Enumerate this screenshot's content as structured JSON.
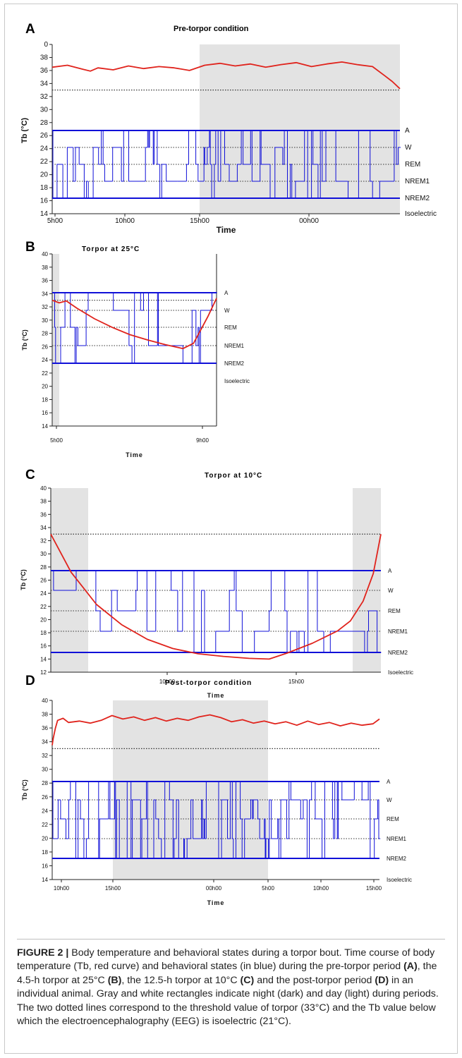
{
  "figure": {
    "caption_label": "FIGURE 2 |",
    "caption_text": " Body temperature and behavioral states during a torpor bout. Time course of body temperature (Tb, red curve) and behavioral states (in blue) during the pre-torpor period ",
    "caption_A": "(A)",
    "caption_t2": ", the 4.5-h torpor at 25°C ",
    "caption_B": "(B)",
    "caption_t3": ", the 12.5-h torpor at 10°C ",
    "caption_C": "(C)",
    "caption_t4": " and the post-torpor period ",
    "caption_D": "(D)",
    "caption_t5": " in an individual animal. Gray and white rectangles indicate night (dark) and day (light) during periods. The two dotted lines correspond to the threshold value of torpor (33°C) and the Tb value below which the electroencephalography (EEG) is isoelectric (21°C)."
  },
  "colors": {
    "tb_curve": "#e0231c",
    "states": "#1010d8",
    "night": "#e3e3e3",
    "dotted": "#333333"
  },
  "chart_data": [
    {
      "panel": "A",
      "type": "line",
      "title": "Pre-torpor condition",
      "ylabel": "Tb (°C)",
      "xlabel": "Time",
      "ylim": [
        14,
        40
      ],
      "y_ticks": [
        "0",
        "38",
        "36",
        "34",
        "32",
        "30",
        "28",
        "26",
        "24",
        "22",
        "20",
        "18",
        "16",
        "14"
      ],
      "x_ticks": [
        "5h00",
        "10h00",
        "15h00",
        "00h00"
      ],
      "state_labels": [
        "A",
        "W",
        "REM",
        "NREM1",
        "NREM2",
        "Isoelectric"
      ],
      "night_shading": [
        {
          "from": "15h00",
          "to": "end"
        }
      ],
      "dotted_lines": [
        33,
        21
      ],
      "series": [
        {
          "name": "Tb",
          "x_hours": [
            5,
            6,
            7,
            7.5,
            8,
            9,
            10,
            11,
            12,
            13,
            14,
            15,
            16,
            17,
            18,
            19,
            20,
            21,
            22,
            23,
            24,
            25,
            26,
            26.8,
            27.3,
            27.8
          ],
          "values": [
            36.5,
            36.8,
            36.2,
            35.9,
            36.4,
            36.1,
            36.7,
            36.3,
            36.6,
            36.4,
            36.0,
            36.8,
            37.1,
            36.7,
            37.0,
            36.5,
            36.9,
            37.2,
            36.6,
            37.0,
            37.3,
            36.9,
            36.6,
            35.2,
            34.3,
            33.2
          ]
        }
      ]
    },
    {
      "panel": "B",
      "type": "line",
      "title": "Torpor at 25°C",
      "ylabel": "Tb (°C)",
      "xlabel": "Time",
      "ylim": [
        14,
        40
      ],
      "y_ticks": [
        "40",
        "38",
        "36",
        "34",
        "32",
        "30",
        "28",
        "26",
        "24",
        "22",
        "20",
        "18",
        "16",
        "14"
      ],
      "x_ticks": [
        "5h00",
        "9h00"
      ],
      "state_labels": [
        "A",
        "W",
        "REM",
        "NREM1",
        "NREM2",
        "Isoelectric"
      ],
      "night_shading": [
        {
          "from": "start",
          "to": "5h10"
        }
      ],
      "dotted_lines": [
        33,
        21
      ],
      "series": [
        {
          "name": "Tb",
          "x_hours": [
            4.8,
            5.0,
            5.2,
            5.5,
            6.0,
            6.5,
            7.0,
            7.5,
            8.0,
            8.5,
            8.8,
            9.0,
            9.2,
            9.45
          ],
          "values": [
            33.0,
            32.6,
            32.9,
            31.8,
            30.2,
            28.9,
            27.8,
            27.0,
            26.3,
            25.7,
            26.5,
            28.5,
            30.5,
            33.3
          ]
        }
      ]
    },
    {
      "panel": "C",
      "type": "line",
      "title": "Torpor at 10°C",
      "ylabel": "Tb (°C)",
      "xlabel": "Time",
      "ylim": [
        12,
        40
      ],
      "y_ticks": [
        "40",
        "38",
        "36",
        "34",
        "32",
        "30",
        "28",
        "26",
        "24",
        "22",
        "20",
        "18",
        "16",
        "14",
        "12"
      ],
      "x_ticks": [
        "10h00",
        "15h00"
      ],
      "state_labels": [
        "A",
        "W",
        "REM",
        "NREM1",
        "NREM2",
        "Isoelectric"
      ],
      "night_shading": [
        {
          "from": "start",
          "to": "7h00"
        },
        {
          "from": "17h00",
          "to": "end"
        }
      ],
      "dotted_lines": [
        33,
        21
      ],
      "series": [
        {
          "name": "Tb",
          "x_hours": [
            5.2,
            6,
            7,
            8,
            9,
            10,
            11,
            12,
            13,
            13.8,
            14.5,
            15.5,
            16.5,
            17.0,
            17.5,
            17.9,
            18.2
          ],
          "values": [
            33.0,
            27.2,
            22.3,
            19.2,
            17.0,
            15.6,
            14.8,
            14.4,
            14.1,
            14.0,
            14.9,
            16.4,
            18.3,
            19.8,
            22.8,
            27.0,
            33.0
          ]
        }
      ]
    },
    {
      "panel": "D",
      "type": "line",
      "title": "Post-torpor condition",
      "ylabel": "Tb (°C)",
      "xlabel": "Time",
      "ylim": [
        14,
        40
      ],
      "y_ticks": [
        "40",
        "38",
        "36",
        "34",
        "32",
        "30",
        "28",
        "26",
        "24",
        "22",
        "20",
        "18",
        "16",
        "14"
      ],
      "x_ticks": [
        "10h00",
        "15h00",
        "00h00",
        "5h00",
        "10h00",
        "15h00"
      ],
      "state_labels": [
        "A",
        "W",
        "REM",
        "NREM1",
        "NREM2",
        "Isoelectric"
      ],
      "night_shading": [
        {
          "from": "15h00",
          "to": "5h00"
        }
      ],
      "dotted_lines": [
        33,
        21
      ],
      "series": [
        {
          "name": "Tb",
          "x_hours": [
            9.5,
            9.6,
            9.8,
            10.0,
            10.5,
            11,
            12,
            13,
            14,
            15,
            16,
            17,
            18,
            19,
            20,
            21,
            22,
            23,
            24,
            25,
            26,
            27,
            28,
            29,
            30,
            31,
            32,
            33,
            34,
            35,
            36,
            37,
            38,
            39,
            39.6
          ],
          "values": [
            33.5,
            34.5,
            36.0,
            37.1,
            37.4,
            36.8,
            37.0,
            36.7,
            37.1,
            37.8,
            37.3,
            37.6,
            37.1,
            37.5,
            37.0,
            37.4,
            37.1,
            37.6,
            37.9,
            37.5,
            36.9,
            37.2,
            36.7,
            37.0,
            36.6,
            36.9,
            36.4,
            37.0,
            36.5,
            36.8,
            36.3,
            36.7,
            36.4,
            36.6,
            37.3
          ]
        }
      ]
    }
  ]
}
